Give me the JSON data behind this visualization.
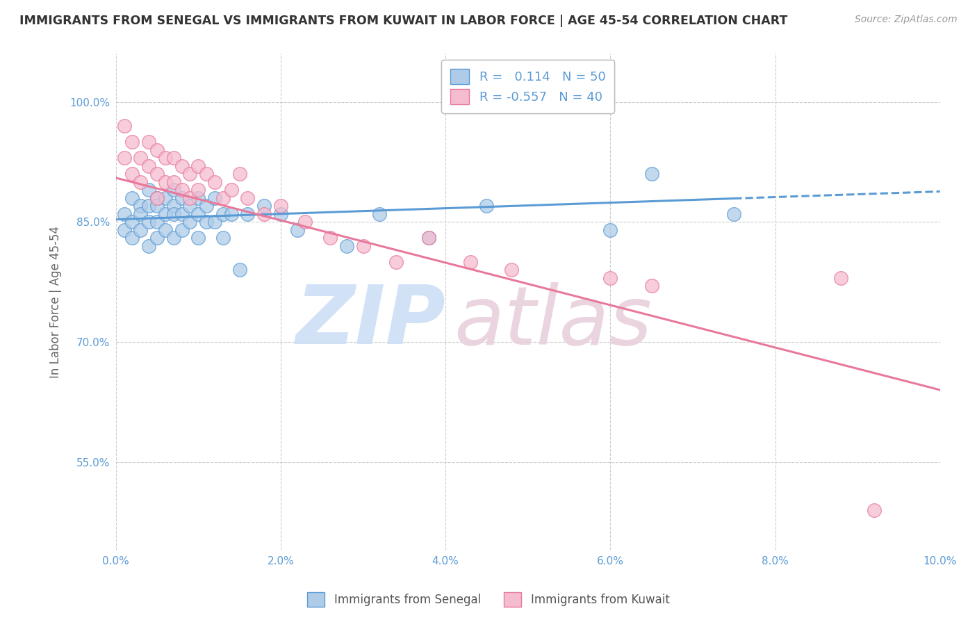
{
  "title": "IMMIGRANTS FROM SENEGAL VS IMMIGRANTS FROM KUWAIT IN LABOR FORCE | AGE 45-54 CORRELATION CHART",
  "source": "Source: ZipAtlas.com",
  "ylabel": "In Labor Force | Age 45-54",
  "xlim": [
    0.0,
    0.1
  ],
  "ylim": [
    0.44,
    1.06
  ],
  "xticks": [
    0.0,
    0.02,
    0.04,
    0.06,
    0.08,
    0.1
  ],
  "xticklabels": [
    "0.0%",
    "2.0%",
    "4.0%",
    "6.0%",
    "8.0%",
    "10.0%"
  ],
  "yticks": [
    0.55,
    0.7,
    0.85,
    1.0
  ],
  "yticklabels": [
    "55.0%",
    "70.0%",
    "85.0%",
    "100.0%"
  ],
  "r_senegal": 0.114,
  "n_senegal": 50,
  "r_kuwait": -0.557,
  "n_kuwait": 40,
  "senegal_face_color": "#aecce8",
  "senegal_edge_color": "#5b9bd5",
  "kuwait_face_color": "#f5bcd0",
  "kuwait_edge_color": "#e8799a",
  "bg_color": "#ffffff",
  "grid_color": "#cccccc",
  "tick_color": "#5b9bd5",
  "senegal_points_x": [
    0.001,
    0.001,
    0.002,
    0.002,
    0.002,
    0.003,
    0.003,
    0.003,
    0.004,
    0.004,
    0.004,
    0.004,
    0.005,
    0.005,
    0.005,
    0.005,
    0.006,
    0.006,
    0.006,
    0.007,
    0.007,
    0.007,
    0.007,
    0.008,
    0.008,
    0.008,
    0.009,
    0.009,
    0.01,
    0.01,
    0.01,
    0.011,
    0.011,
    0.012,
    0.012,
    0.013,
    0.013,
    0.014,
    0.015,
    0.016,
    0.018,
    0.02,
    0.022,
    0.028,
    0.032,
    0.038,
    0.045,
    0.06,
    0.065,
    0.075
  ],
  "senegal_points_y": [
    0.86,
    0.84,
    0.88,
    0.85,
    0.83,
    0.87,
    0.86,
    0.84,
    0.89,
    0.87,
    0.85,
    0.82,
    0.88,
    0.87,
    0.85,
    0.83,
    0.88,
    0.86,
    0.84,
    0.89,
    0.87,
    0.86,
    0.83,
    0.88,
    0.86,
    0.84,
    0.87,
    0.85,
    0.88,
    0.86,
    0.83,
    0.87,
    0.85,
    0.88,
    0.85,
    0.86,
    0.83,
    0.86,
    0.79,
    0.86,
    0.87,
    0.86,
    0.84,
    0.82,
    0.86,
    0.83,
    0.87,
    0.84,
    0.91,
    0.86
  ],
  "kuwait_points_x": [
    0.001,
    0.001,
    0.002,
    0.002,
    0.003,
    0.003,
    0.004,
    0.004,
    0.005,
    0.005,
    0.005,
    0.006,
    0.006,
    0.007,
    0.007,
    0.008,
    0.008,
    0.009,
    0.009,
    0.01,
    0.01,
    0.011,
    0.012,
    0.013,
    0.014,
    0.015,
    0.016,
    0.018,
    0.02,
    0.023,
    0.026,
    0.03,
    0.034,
    0.038,
    0.043,
    0.048,
    0.06,
    0.065,
    0.088,
    0.092
  ],
  "kuwait_points_y": [
    0.97,
    0.93,
    0.95,
    0.91,
    0.93,
    0.9,
    0.95,
    0.92,
    0.94,
    0.91,
    0.88,
    0.93,
    0.9,
    0.93,
    0.9,
    0.92,
    0.89,
    0.91,
    0.88,
    0.92,
    0.89,
    0.91,
    0.9,
    0.88,
    0.89,
    0.91,
    0.88,
    0.86,
    0.87,
    0.85,
    0.83,
    0.82,
    0.8,
    0.83,
    0.8,
    0.79,
    0.78,
    0.77,
    0.78,
    0.49
  ],
  "senegal_line_intercept": 0.853,
  "senegal_line_slope": 0.35,
  "kuwait_line_intercept": 0.905,
  "kuwait_line_slope": -2.65
}
